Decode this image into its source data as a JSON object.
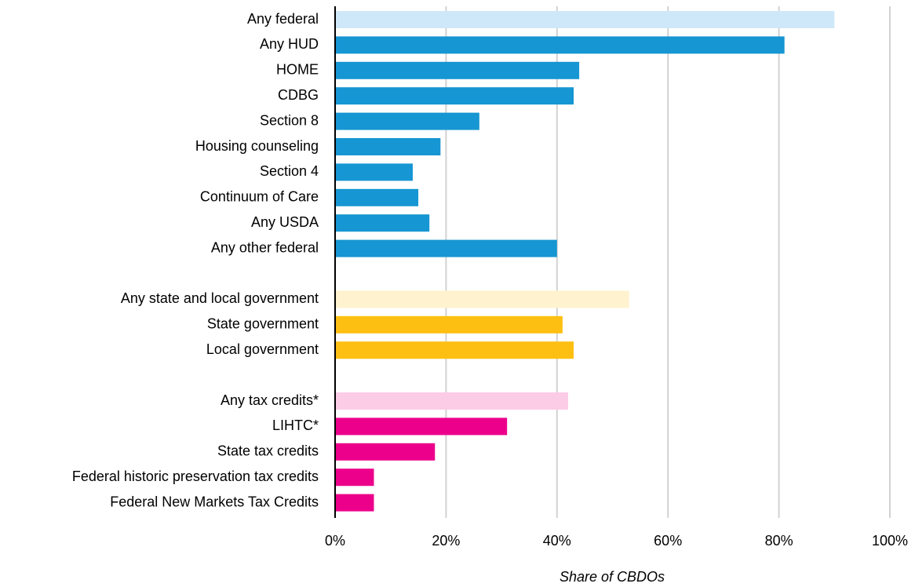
{
  "chart_data": {
    "type": "bar",
    "orientation": "horizontal",
    "categories": [
      "Any federal",
      "Any HUD",
      "HOME",
      "CDBG",
      "Section 8",
      "Housing counseling",
      "Section 4",
      "Continuum of Care",
      "Any USDA",
      "Any other federal",
      null,
      "Any state and local government",
      "State government",
      "Local government",
      null,
      "Any tax credits*",
      "LIHTC*",
      "State tax credits",
      "Federal historic preservation tax credits",
      "Federal New Markets Tax Credits"
    ],
    "values": [
      90,
      81,
      44,
      43,
      26,
      19,
      14,
      15,
      17,
      40,
      null,
      53,
      41,
      43,
      null,
      42,
      31,
      18,
      7,
      7
    ],
    "colors": [
      "#cfe8f9",
      "#1696d2",
      "#1696d2",
      "#1696d2",
      "#1696d2",
      "#1696d2",
      "#1696d2",
      "#1696d2",
      "#1696d2",
      "#1696d2",
      null,
      "#fff2cf",
      "#fdbf11",
      "#fdbf11",
      null,
      "#fccbe6",
      "#ec008b",
      "#ec008b",
      "#ec008b",
      "#ec008b"
    ],
    "xlabel": "Share of CBDOs",
    "xlim": [
      0,
      100
    ],
    "xticks": [
      {
        "value": 0,
        "label": "0%"
      },
      {
        "value": 20,
        "label": "20%"
      },
      {
        "value": 40,
        "label": "40%"
      },
      {
        "value": 60,
        "label": "60%"
      },
      {
        "value": 80,
        "label": "80%"
      },
      {
        "value": 100,
        "label": "100%"
      }
    ],
    "grid": true
  }
}
